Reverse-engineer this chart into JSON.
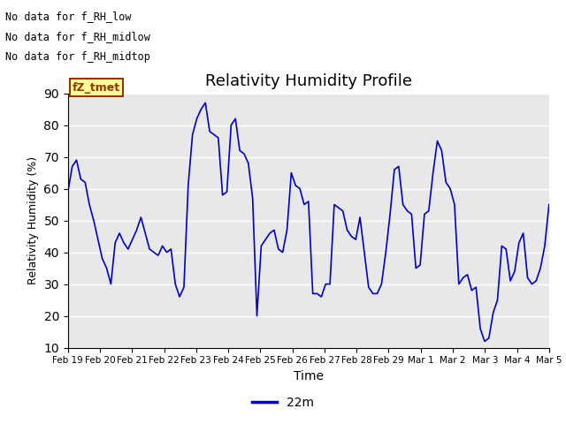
{
  "title": "Relativity Humidity Profile",
  "xlabel": "Time",
  "ylabel": "Relativity Humidity (%)",
  "ylim": [
    10,
    90
  ],
  "yticks": [
    10,
    20,
    30,
    40,
    50,
    60,
    70,
    80,
    90
  ],
  "line_color": "#0000CC",
  "line_width": 1.2,
  "bg_color": "#E8E8E8",
  "legend_label": "22m",
  "no_data_texts": [
    "No data for f_RH_low",
    "No data for f_RH_midlow",
    "No data for f_RH_midtop"
  ],
  "legend_box_color": "#FFFF99",
  "legend_box_edge": "#993300",
  "legend_text_color": "#993300",
  "legend_box_label": "fZ_tmet",
  "x_tick_labels": [
    "Feb 19",
    "Feb 20",
    "Feb 21",
    "Feb 22",
    "Feb 23",
    "Feb 24",
    "Feb 25",
    "Feb 26",
    "Feb 27",
    "Feb 28",
    "Feb 29",
    "Mar 1",
    "Mar 2",
    "Mar 3",
    "Mar 4",
    "Mar 5"
  ],
  "y_values": [
    59,
    67,
    69,
    63,
    62,
    55,
    50,
    44,
    38,
    35,
    30,
    43,
    46,
    43,
    41,
    44,
    47,
    51,
    46,
    41,
    40,
    39,
    42,
    40,
    41,
    30,
    26,
    29,
    61,
    77,
    82,
    85,
    87,
    78,
    77,
    76,
    58,
    59,
    80,
    82,
    72,
    71,
    68,
    57,
    20,
    42,
    44,
    46,
    47,
    41,
    40,
    47,
    65,
    61,
    60,
    55,
    56,
    27,
    27,
    26,
    30,
    30,
    55,
    54,
    53,
    47,
    45,
    44,
    51,
    40,
    29,
    27,
    27,
    30,
    40,
    52,
    66,
    67,
    55,
    53,
    52,
    35,
    36,
    52,
    53,
    65,
    75,
    72,
    62,
    60,
    55,
    30,
    32,
    33,
    28,
    29,
    16,
    12,
    13,
    21,
    25,
    42,
    41,
    31,
    34,
    43,
    46,
    32,
    30,
    31,
    35,
    42,
    55
  ]
}
